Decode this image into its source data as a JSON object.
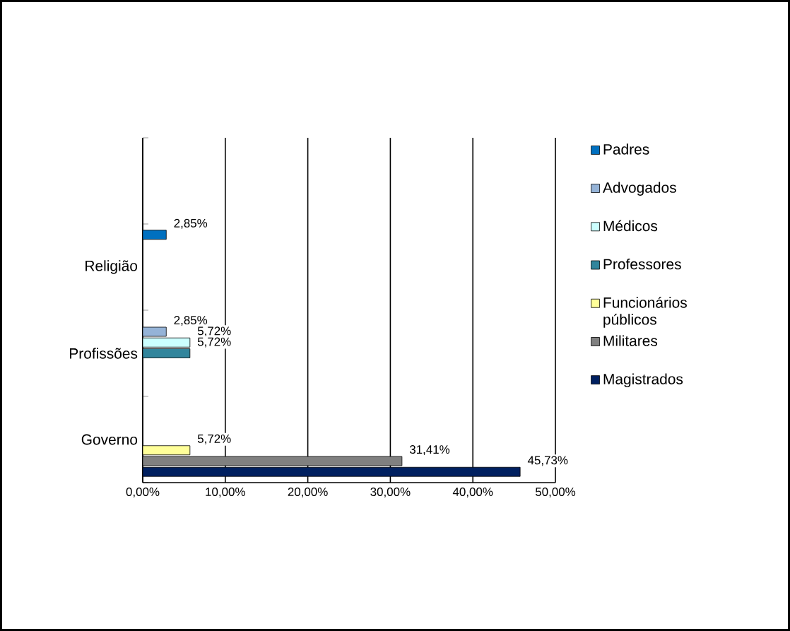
{
  "chart_data": {
    "type": "bar",
    "orientation": "horizontal",
    "categories": [
      null,
      "Religião",
      "Profissões",
      "Governo"
    ],
    "series": [
      {
        "name": "Padres",
        "color": "#0070c0",
        "values": [
          null,
          2.85,
          null,
          null
        ],
        "value_labels": [
          null,
          "2,85%",
          null,
          null
        ]
      },
      {
        "name": "Advogados",
        "color": "#95b3d7",
        "values": [
          null,
          null,
          2.85,
          null
        ],
        "value_labels": [
          null,
          null,
          "2,85%",
          null
        ]
      },
      {
        "name": "Médicos",
        "color": "#ccffff",
        "values": [
          null,
          null,
          5.72,
          null
        ],
        "value_labels": [
          null,
          null,
          "5,72%",
          null
        ]
      },
      {
        "name": "Professores",
        "color": "#31859c",
        "values": [
          null,
          null,
          5.72,
          null
        ],
        "value_labels": [
          null,
          null,
          "5,72%",
          null
        ]
      },
      {
        "name": "Funcionários públicos",
        "color": "#ffff99",
        "values": [
          null,
          null,
          null,
          5.72
        ],
        "value_labels": [
          null,
          null,
          null,
          "5,72%"
        ]
      },
      {
        "name": "Militares",
        "color": "#808080",
        "values": [
          null,
          null,
          null,
          31.41
        ],
        "value_labels": [
          null,
          null,
          null,
          "31,41%"
        ]
      },
      {
        "name": "Magistrados",
        "color": "#002060",
        "values": [
          null,
          null,
          null,
          45.73
        ],
        "value_labels": [
          null,
          null,
          null,
          "45,73%"
        ]
      }
    ],
    "xlim": [
      0,
      50
    ],
    "xticks": [
      {
        "value": 0,
        "label": "0,00%"
      },
      {
        "value": 10,
        "label": "10,00%"
      },
      {
        "value": 20,
        "label": "20,00%"
      },
      {
        "value": 30,
        "label": "30,00%"
      },
      {
        "value": 40,
        "label": "40,00%"
      },
      {
        "value": 50,
        "label": "50,00%"
      }
    ],
    "grid": "x",
    "legend": "right"
  }
}
